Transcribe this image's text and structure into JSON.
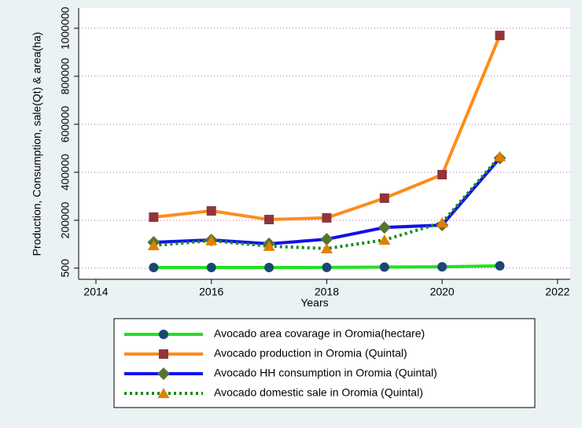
{
  "chart_data": {
    "type": "line",
    "x_label": "Years",
    "y_label": "Production, Consumption, sale(Qt) & area(ha)",
    "x": [
      2015,
      2016,
      2017,
      2018,
      2019,
      2020,
      2021
    ],
    "series": [
      {
        "name": "Avocado area covarage in Oromia(hectare)",
        "color": "#22e022",
        "marker_color": "#1a476f",
        "marker": "circle",
        "dash": "solid",
        "values": [
          3000,
          3000,
          3000,
          3500,
          5000,
          6000,
          10000
        ]
      },
      {
        "name": "Avocado production in Oromia (Quintal)",
        "color": "#ff8c1a",
        "marker_color": "#90353b",
        "marker": "square",
        "dash": "solid",
        "values": [
          213000,
          239000,
          203000,
          210000,
          292000,
          390000,
          970000
        ]
      },
      {
        "name": "Avocado HH consumption in Oromia (Quintal)",
        "color": "#1010ee",
        "marker_color": "#55752f",
        "marker": "diamond",
        "dash": "solid",
        "values": [
          108000,
          118000,
          102000,
          121000,
          170000,
          180000,
          459000
        ]
      },
      {
        "name": "Avocado domestic sale in Oromia (Quintal)",
        "color": "#1a8a1a",
        "marker_color": "#e37e00",
        "marker": "triangle",
        "dash": "dotted",
        "values": [
          95000,
          115000,
          92000,
          82000,
          118000,
          190000,
          466000
        ]
      }
    ],
    "xlim": [
      2013.7,
      2022.22
    ],
    "xticks": [
      2014,
      2016,
      2018,
      2020,
      2022
    ],
    "ylim": [
      -46000,
      1085000
    ],
    "yticks": [
      500,
      200000,
      400000,
      600000,
      800000,
      1000000
    ],
    "grid": true,
    "grid_color": "#c060c0",
    "legend": "bottom"
  }
}
